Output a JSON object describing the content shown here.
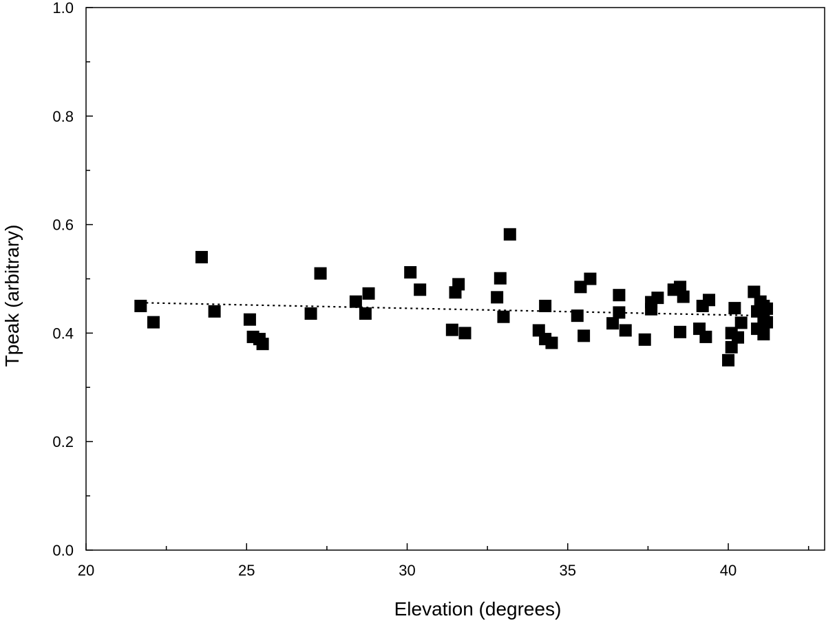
{
  "chart_data": {
    "type": "scatter",
    "title": "",
    "xlabel": "Elevation (degrees)",
    "ylabel": "Tpeak (arbitrary)",
    "xlim": [
      20,
      43
    ],
    "ylim": [
      0.0,
      1.0
    ],
    "x_ticks": [
      "20",
      "25",
      "30",
      "35",
      "40"
    ],
    "y_ticks": [
      "0.0",
      "0.2",
      "0.4",
      "0.6",
      "0.8",
      "1.0"
    ],
    "grid": false,
    "marker": "square",
    "marker_color": "#000000",
    "points": [
      {
        "x": 21.7,
        "y": 0.45
      },
      {
        "x": 22.1,
        "y": 0.42
      },
      {
        "x": 23.6,
        "y": 0.54
      },
      {
        "x": 24.0,
        "y": 0.44
      },
      {
        "x": 25.1,
        "y": 0.425
      },
      {
        "x": 25.2,
        "y": 0.393
      },
      {
        "x": 25.4,
        "y": 0.389
      },
      {
        "x": 25.5,
        "y": 0.38
      },
      {
        "x": 27.0,
        "y": 0.436
      },
      {
        "x": 27.3,
        "y": 0.51
      },
      {
        "x": 28.4,
        "y": 0.458
      },
      {
        "x": 28.7,
        "y": 0.436
      },
      {
        "x": 28.8,
        "y": 0.473
      },
      {
        "x": 30.1,
        "y": 0.512
      },
      {
        "x": 30.4,
        "y": 0.48
      },
      {
        "x": 31.4,
        "y": 0.406
      },
      {
        "x": 31.5,
        "y": 0.475
      },
      {
        "x": 31.6,
        "y": 0.49
      },
      {
        "x": 31.8,
        "y": 0.4
      },
      {
        "x": 32.8,
        "y": 0.466
      },
      {
        "x": 32.9,
        "y": 0.501
      },
      {
        "x": 33.0,
        "y": 0.43
      },
      {
        "x": 33.2,
        "y": 0.582
      },
      {
        "x": 34.1,
        "y": 0.405
      },
      {
        "x": 34.3,
        "y": 0.45
      },
      {
        "x": 34.3,
        "y": 0.389
      },
      {
        "x": 34.5,
        "y": 0.382
      },
      {
        "x": 35.3,
        "y": 0.432
      },
      {
        "x": 35.4,
        "y": 0.485
      },
      {
        "x": 35.5,
        "y": 0.395
      },
      {
        "x": 35.7,
        "y": 0.5
      },
      {
        "x": 36.4,
        "y": 0.418
      },
      {
        "x": 36.6,
        "y": 0.438
      },
      {
        "x": 36.6,
        "y": 0.47
      },
      {
        "x": 36.8,
        "y": 0.405
      },
      {
        "x": 37.4,
        "y": 0.388
      },
      {
        "x": 37.6,
        "y": 0.457
      },
      {
        "x": 37.6,
        "y": 0.444
      },
      {
        "x": 37.8,
        "y": 0.465
      },
      {
        "x": 38.3,
        "y": 0.48
      },
      {
        "x": 38.5,
        "y": 0.485
      },
      {
        "x": 38.5,
        "y": 0.402
      },
      {
        "x": 38.6,
        "y": 0.467
      },
      {
        "x": 39.1,
        "y": 0.408
      },
      {
        "x": 39.2,
        "y": 0.45
      },
      {
        "x": 39.3,
        "y": 0.393
      },
      {
        "x": 39.4,
        "y": 0.461
      },
      {
        "x": 40.0,
        "y": 0.35
      },
      {
        "x": 40.1,
        "y": 0.374
      },
      {
        "x": 40.1,
        "y": 0.4
      },
      {
        "x": 40.2,
        "y": 0.446
      },
      {
        "x": 40.3,
        "y": 0.392
      },
      {
        "x": 40.4,
        "y": 0.419
      },
      {
        "x": 40.8,
        "y": 0.476
      },
      {
        "x": 40.9,
        "y": 0.44
      },
      {
        "x": 40.9,
        "y": 0.408
      },
      {
        "x": 41.0,
        "y": 0.458
      },
      {
        "x": 41.1,
        "y": 0.45
      },
      {
        "x": 41.1,
        "y": 0.43
      },
      {
        "x": 41.2,
        "y": 0.42
      },
      {
        "x": 41.2,
        "y": 0.445
      },
      {
        "x": 41.1,
        "y": 0.398
      }
    ],
    "trendline": {
      "style": "dotted",
      "x": [
        21.7,
        41.1
      ],
      "y": [
        0.456,
        0.432
      ]
    }
  }
}
